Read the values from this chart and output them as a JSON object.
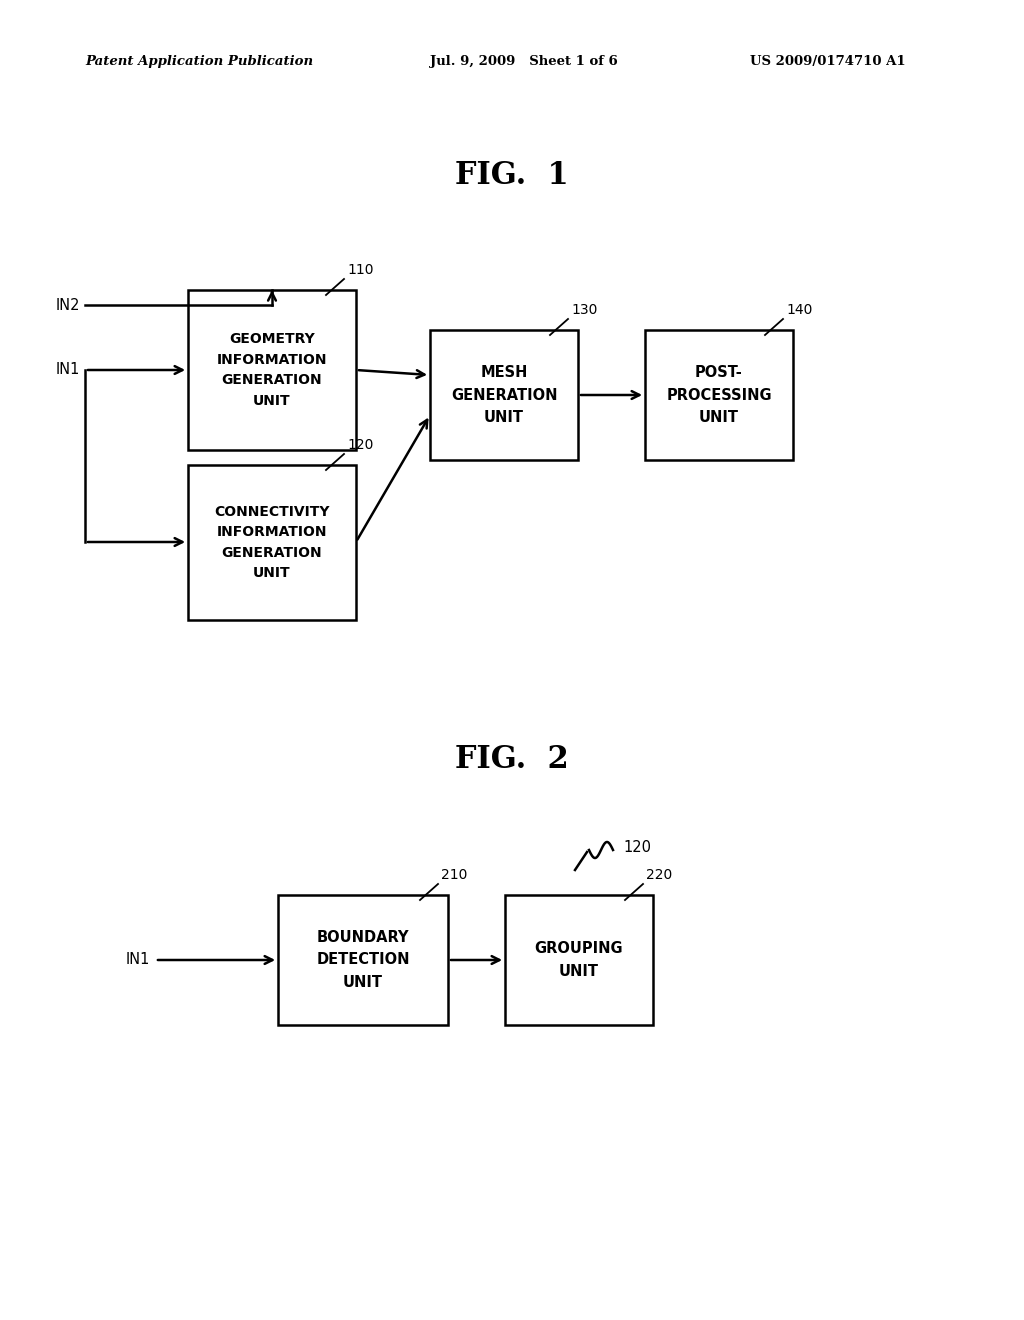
{
  "bg_color": "#ffffff",
  "header_left": "Patent Application Publication",
  "header_mid": "Jul. 9, 2009   Sheet 1 of 6",
  "header_right": "US 2009/0174710 A1",
  "fig1_title": "FIG.  1",
  "fig2_title": "FIG.  2"
}
